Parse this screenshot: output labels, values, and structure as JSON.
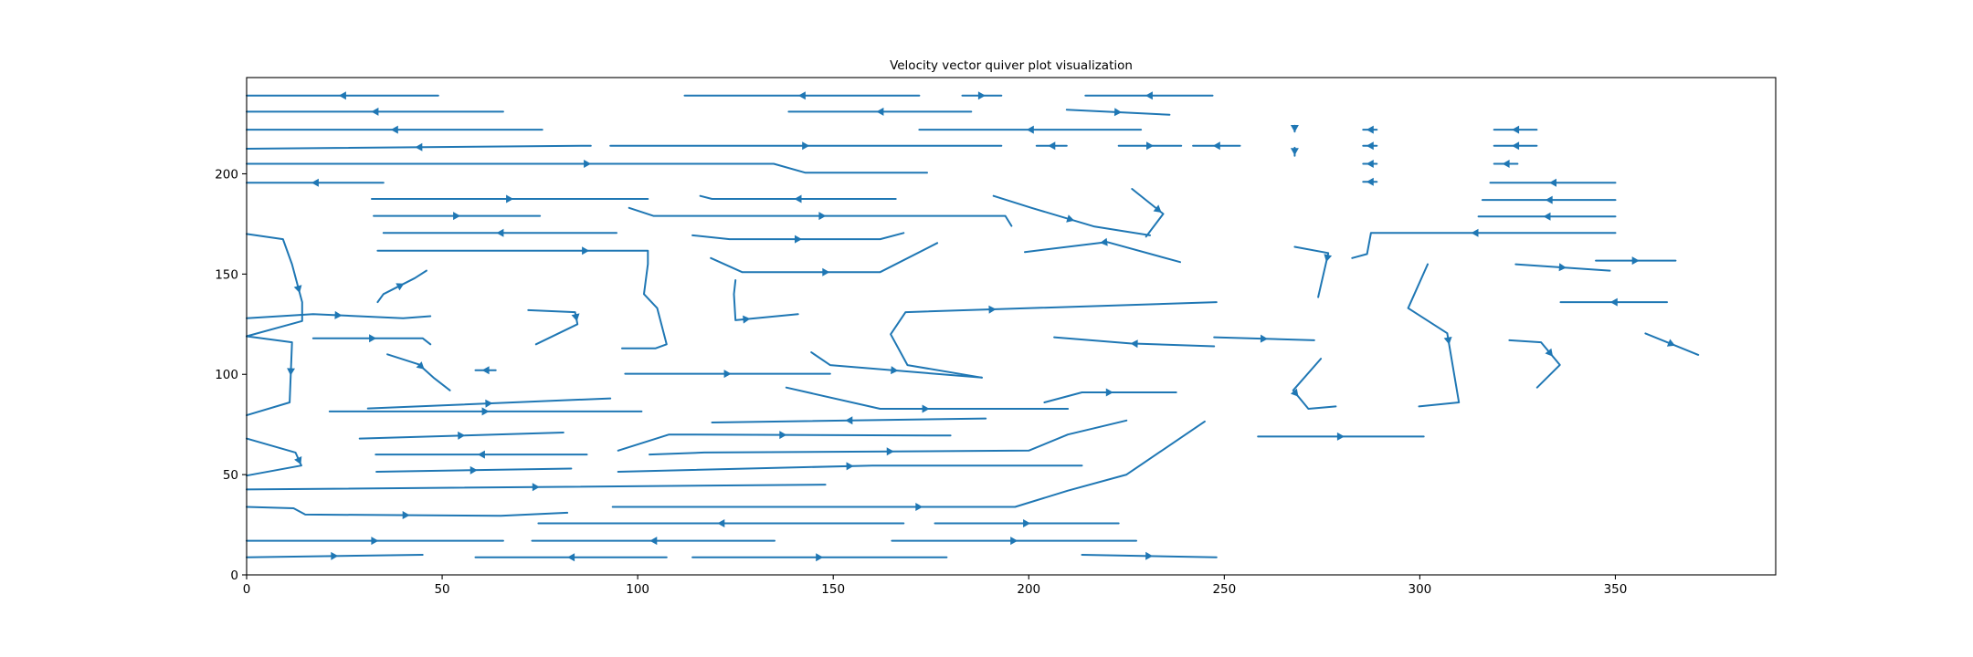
{
  "chart_data": {
    "type": "streamplot",
    "title": "Velocity vector quiver plot visualization",
    "color": "#1f77b4",
    "xlim": [
      0,
      391
    ],
    "ylim": [
      0,
      248
    ],
    "xticks": [
      0,
      50,
      100,
      150,
      200,
      250,
      300,
      350
    ],
    "yticks": [
      0,
      50,
      100,
      150,
      200
    ],
    "series": [
      {
        "x": [
          49,
          0
        ],
        "y": [
          239,
          239
        ]
      },
      {
        "x": [
          65.6,
          0
        ],
        "y": [
          231,
          231
        ]
      },
      {
        "x": [
          75.6,
          0
        ],
        "y": [
          222,
          222
        ]
      },
      {
        "x": [
          88,
          0
        ],
        "y": [
          214,
          212.5
        ]
      },
      {
        "x": [
          0,
          134.8,
          142.8,
          174
        ],
        "y": [
          205,
          205,
          200.6,
          200.6
        ]
      },
      {
        "x": [
          172,
          112
        ],
        "y": [
          239,
          239
        ]
      },
      {
        "x": [
          183,
          193
        ],
        "y": [
          239,
          239
        ]
      },
      {
        "x": [
          247,
          214.5
        ],
        "y": [
          239,
          239
        ]
      },
      {
        "x": [
          185.3,
          138.6
        ],
        "y": [
          231,
          231
        ]
      },
      {
        "x": [
          209.7,
          236
        ],
        "y": [
          232,
          229.5
        ]
      },
      {
        "x": [
          228.7,
          172
        ],
        "y": [
          222,
          222
        ]
      },
      {
        "x": [
          93,
          193
        ],
        "y": [
          214,
          214
        ]
      },
      {
        "x": [
          209.7,
          202
        ],
        "y": [
          214,
          214
        ]
      },
      {
        "x": [
          223,
          239
        ],
        "y": [
          214,
          214
        ]
      },
      {
        "x": [
          254,
          242
        ],
        "y": [
          214,
          214
        ]
      },
      {
        "x": [
          268,
          268
        ],
        "y": [
          224,
          221
        ]
      },
      {
        "x": [
          268,
          268
        ],
        "y": [
          213,
          209
        ]
      },
      {
        "x": [
          289,
          285.5
        ],
        "y": [
          222,
          222
        ]
      },
      {
        "x": [
          289,
          285.5
        ],
        "y": [
          214,
          214
        ]
      },
      {
        "x": [
          289,
          285.5
        ],
        "y": [
          205,
          205
        ]
      },
      {
        "x": [
          289,
          285.5
        ],
        "y": [
          196,
          196
        ]
      },
      {
        "x": [
          329.9,
          319
        ],
        "y": [
          222,
          222
        ]
      },
      {
        "x": [
          329.9,
          319
        ],
        "y": [
          214,
          214
        ]
      },
      {
        "x": [
          325,
          319
        ],
        "y": [
          205,
          205
        ]
      },
      {
        "x": [
          350,
          318
        ],
        "y": [
          195.6,
          195.6
        ]
      },
      {
        "x": [
          350,
          316
        ],
        "y": [
          187,
          187
        ]
      },
      {
        "x": [
          350,
          315
        ],
        "y": [
          178.7,
          178.7
        ]
      },
      {
        "x": [
          350,
          287.5,
          286.5,
          282.7
        ],
        "y": [
          170.5,
          170.5,
          160,
          158
        ]
      },
      {
        "x": [
          35,
          0
        ],
        "y": [
          195.6,
          195.6
        ]
      },
      {
        "x": [
          0,
          9.3,
          11.6,
          14.2,
          14.2,
          0
        ],
        "y": [
          170,
          167.4,
          154.9,
          136,
          126.6,
          119
        ]
      },
      {
        "x": [
          32,
          102.6
        ],
        "y": [
          187.5,
          187.5
        ]
      },
      {
        "x": [
          32.5,
          75
        ],
        "y": [
          179,
          179
        ]
      },
      {
        "x": [
          94.6,
          35
        ],
        "y": [
          170.5,
          170.5
        ]
      },
      {
        "x": [
          33.5,
          102.6,
          102.6,
          101.6,
          105,
          107.4,
          104.6,
          96
        ],
        "y": [
          161.7,
          161.7,
          155,
          140,
          133,
          115,
          113,
          113
        ]
      },
      {
        "x": [
          0,
          148
        ],
        "y": [
          42.6,
          45
        ]
      },
      {
        "x": [
          0,
          12,
          15,
          65,
          82
        ],
        "y": [
          33.9,
          33.2,
          30.1,
          29.5,
          31
        ]
      },
      {
        "x": [
          0,
          65.6
        ],
        "y": [
          17,
          17
        ]
      },
      {
        "x": [
          0,
          45
        ],
        "y": [
          8.8,
          10
        ]
      },
      {
        "x": [
          107.4,
          58.5
        ],
        "y": [
          8.8,
          8.8
        ]
      },
      {
        "x": [
          114,
          179
        ],
        "y": [
          8.8,
          8.8
        ]
      },
      {
        "x": [
          213.6,
          248
        ],
        "y": [
          10,
          8.8
        ]
      },
      {
        "x": [
          135,
          73
        ],
        "y": [
          17,
          17
        ]
      },
      {
        "x": [
          168,
          74.6
        ],
        "y": [
          25.7,
          25.7
        ]
      },
      {
        "x": [
          176,
          223
        ],
        "y": [
          25.7,
          25.7
        ]
      },
      {
        "x": [
          165,
          227.5
        ],
        "y": [
          17,
          17
        ]
      },
      {
        "x": [
          93.6,
          196.5,
          210,
          225,
          245
        ],
        "y": [
          33.9,
          33.9,
          42,
          50,
          76.5
        ]
      },
      {
        "x": [
          33.2,
          83
        ],
        "y": [
          51.4,
          53
        ]
      },
      {
        "x": [
          95,
          160,
          213.6
        ],
        "y": [
          51.4,
          54.5,
          54.5
        ]
      },
      {
        "x": [
          28.9,
          81
        ],
        "y": [
          68,
          71
        ]
      },
      {
        "x": [
          87,
          33
        ],
        "y": [
          60,
          60
        ]
      },
      {
        "x": [
          103,
          117,
          200,
          210,
          225
        ],
        "y": [
          60,
          61,
          62,
          70,
          77
        ]
      },
      {
        "x": [
          189,
          119
        ],
        "y": [
          78,
          76
        ]
      },
      {
        "x": [
          95,
          108,
          180
        ],
        "y": [
          62,
          70,
          69.5
        ]
      },
      {
        "x": [
          31,
          93
        ],
        "y": [
          83,
          88
        ]
      },
      {
        "x": [
          21.2,
          101
        ],
        "y": [
          81.5,
          81.5
        ]
      },
      {
        "x": [
          0,
          11.6,
          11,
          0
        ],
        "y": [
          119,
          116,
          86,
          79.6
        ]
      },
      {
        "x": [
          96.8,
          125,
          149.2
        ],
        "y": [
          100.3,
          100.3,
          100.3
        ]
      },
      {
        "x": [
          0,
          12.5,
          14,
          0
        ],
        "y": [
          68,
          61,
          54.5,
          49.5
        ]
      },
      {
        "x": [
          166,
          119,
          116
        ],
        "y": [
          187.5,
          187.5,
          189
        ]
      },
      {
        "x": [
          97.8,
          104,
          194,
          195.6
        ],
        "y": [
          183,
          179,
          179,
          174
        ]
      },
      {
        "x": [
          114,
          123.5,
          162,
          168
        ],
        "y": [
          169.3,
          167.4,
          167.4,
          170.5
        ]
      },
      {
        "x": [
          118.7,
          126.7,
          162,
          176.6
        ],
        "y": [
          158,
          151,
          151,
          165.5
        ]
      },
      {
        "x": [
          125,
          124.6,
          125,
          141
        ],
        "y": [
          147,
          140,
          127,
          130
        ]
      },
      {
        "x": [
          188,
          169,
          164.7,
          168.5,
          248
        ],
        "y": [
          98.4,
          104.6,
          120,
          131,
          136
        ]
      },
      {
        "x": [
          144.4,
          149.2,
          188
        ],
        "y": [
          111,
          104.6,
          98.4
        ]
      },
      {
        "x": [
          247.4,
          226,
          206.5
        ],
        "y": [
          114,
          115.4,
          118.5
        ]
      },
      {
        "x": [
          138,
          162,
          210
        ],
        "y": [
          93.4,
          82.8,
          82.8
        ]
      },
      {
        "x": [
          204,
          213.6,
          237.7
        ],
        "y": [
          86,
          91,
          91
        ]
      },
      {
        "x": [
          238.7,
          220,
          199
        ],
        "y": [
          156,
          166,
          161
        ]
      },
      {
        "x": [
          226.4,
          234.4,
          230
        ],
        "y": [
          192.5,
          180,
          168.7
        ]
      },
      {
        "x": [
          191,
          200.7,
          216.8,
          231
        ],
        "y": [
          189,
          183,
          173.7,
          169.3
        ]
      },
      {
        "x": [
          268,
          276.6,
          274
        ],
        "y": [
          163.6,
          160.5,
          138.5
        ]
      },
      {
        "x": [
          247.4,
          273
        ],
        "y": [
          118.5,
          117
        ]
      },
      {
        "x": [
          274.7,
          267.6,
          271.5,
          278.5
        ],
        "y": [
          107.8,
          92,
          82.8,
          84
        ]
      },
      {
        "x": [
          258.6,
          301
        ],
        "y": [
          69,
          69
        ]
      },
      {
        "x": [
          302,
          297,
          307,
          310,
          299.8
        ],
        "y": [
          154.9,
          133,
          120.5,
          86,
          84
        ]
      },
      {
        "x": [
          324.5,
          348.6
        ],
        "y": [
          154.9,
          151.7
        ]
      },
      {
        "x": [
          363.2,
          336
        ],
        "y": [
          136,
          136
        ]
      },
      {
        "x": [
          345,
          365.4
        ],
        "y": [
          156.7,
          156.7
        ]
      },
      {
        "x": [
          322.9,
          331,
          335.8,
          330
        ],
        "y": [
          117,
          116,
          104.7,
          93.4
        ]
      },
      {
        "x": [
          357.7,
          371.2
        ],
        "y": [
          120.4,
          109.7
        ]
      },
      {
        "x": [
          33.5,
          35,
          43,
          46
        ],
        "y": [
          136,
          140,
          148,
          151.7
        ]
      },
      {
        "x": [
          0,
          17,
          40,
          47
        ],
        "y": [
          128,
          130,
          128,
          129
        ]
      },
      {
        "x": [
          17,
          45,
          47
        ],
        "y": [
          118,
          118,
          115
        ]
      },
      {
        "x": [
          72,
          84,
          84.6,
          74
        ],
        "y": [
          132,
          131,
          125,
          115
        ]
      },
      {
        "x": [
          36,
          44,
          48,
          52
        ],
        "y": [
          110,
          105,
          98,
          92
        ]
      },
      {
        "x": [
          63.7,
          58.5
        ],
        "y": [
          102,
          102
        ]
      }
    ]
  }
}
